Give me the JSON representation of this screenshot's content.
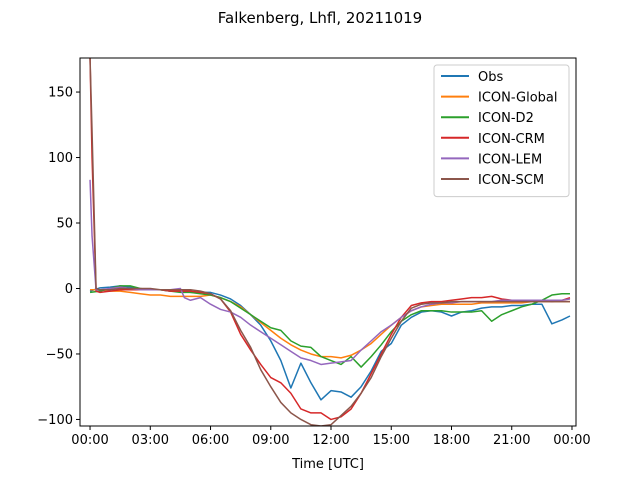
{
  "chart_data": {
    "type": "line",
    "title": "Falkenberg, Lhfl, 20211019",
    "xlabel": "Time [UTC]",
    "ylabel": "",
    "xlim": [
      -0.5,
      24.2
    ],
    "ylim": [
      -105,
      176
    ],
    "xticks": [
      0,
      3,
      6,
      9,
      12,
      15,
      18,
      21,
      24
    ],
    "xtick_labels": [
      "00:00",
      "03:00",
      "06:00",
      "09:00",
      "12:00",
      "15:00",
      "18:00",
      "21:00",
      "00:00"
    ],
    "yticks": [
      -100,
      -50,
      0,
      50,
      100,
      150
    ],
    "ytick_labels": [
      "−100",
      "−50",
      "0",
      "50",
      "100",
      "150"
    ],
    "legend_position": "top-right",
    "grid": false,
    "series": [
      {
        "name": "Obs",
        "color": "#1f77b4",
        "x": [
          0,
          0.5,
          1,
          1.5,
          2,
          2.5,
          3,
          3.5,
          4,
          4.5,
          5,
          5.5,
          6,
          6.5,
          7,
          7.5,
          8,
          8.5,
          9,
          9.5,
          10,
          10.5,
          11,
          11.5,
          12,
          12.5,
          13,
          13.5,
          14,
          14.5,
          15,
          15.5,
          16,
          16.5,
          17,
          17.5,
          18,
          18.5,
          19,
          19.5,
          20,
          20.5,
          21,
          21.5,
          22,
          22.5,
          23,
          23.5,
          23.9
        ],
        "y": [
          -2,
          0.5,
          1,
          2,
          1,
          -1,
          -1,
          -1,
          -2,
          -2,
          -3,
          -3,
          -3,
          -5,
          -8,
          -13,
          -20,
          -28,
          -40,
          -55,
          -76,
          -57,
          -72,
          -85,
          -78,
          -79,
          -83,
          -75,
          -63,
          -48,
          -42,
          -28,
          -22,
          -18,
          -17,
          -18,
          -21,
          -18,
          -17,
          -15,
          -14,
          -14,
          -13,
          -13,
          -12,
          -12,
          -27,
          -24,
          -21
        ]
      },
      {
        "name": "ICON-Global",
        "color": "#ff7f0e",
        "x": [
          0,
          0.5,
          1,
          1.5,
          2,
          2.5,
          3,
          3.5,
          4,
          4.5,
          5,
          5.5,
          6,
          6.5,
          7,
          7.5,
          8,
          8.5,
          9,
          9.5,
          10,
          10.5,
          11,
          11.5,
          12,
          12.5,
          13,
          13.5,
          14,
          14.5,
          15,
          15.5,
          16,
          16.5,
          17,
          17.5,
          18,
          18.5,
          19,
          19.5,
          20,
          20.5,
          21,
          21.5,
          22,
          22.5,
          23,
          23.5,
          23.9
        ],
        "y": [
          -1,
          -1,
          -2,
          -2,
          -3,
          -4,
          -5,
          -5,
          -6,
          -6,
          -6,
          -6,
          -5,
          -7,
          -10,
          -14,
          -20,
          -26,
          -32,
          -38,
          -43,
          -47,
          -50,
          -52,
          -52,
          -53,
          -51,
          -47,
          -42,
          -35,
          -28,
          -22,
          -17,
          -14,
          -13,
          -12,
          -12,
          -12,
          -12,
          -11,
          -11,
          -11,
          -11,
          -11,
          -10,
          -10,
          -10,
          -10,
          -10
        ]
      },
      {
        "name": "ICON-D2",
        "color": "#2ca02c",
        "x": [
          0,
          0.5,
          1,
          1.5,
          2,
          2.5,
          3,
          3.5,
          4,
          4.5,
          5,
          5.5,
          6,
          6.5,
          7,
          7.5,
          8,
          8.5,
          9,
          9.5,
          10,
          10.5,
          11,
          11.5,
          12,
          12.5,
          13,
          13.5,
          14,
          14.5,
          15,
          15.5,
          16,
          16.5,
          17,
          17.5,
          18,
          18.5,
          19,
          19.5,
          20,
          20.5,
          21,
          21.5,
          22,
          22.5,
          23,
          23.5,
          23.9
        ],
        "y": [
          -3,
          -2,
          0,
          2,
          2,
          0,
          -1,
          -1,
          -2,
          -3,
          -3,
          -4,
          -5,
          -7,
          -10,
          -15,
          -20,
          -25,
          -30,
          -32,
          -40,
          -44,
          -45,
          -52,
          -55,
          -58,
          -52,
          -60,
          -52,
          -43,
          -33,
          -25,
          -20,
          -17,
          -17,
          -17,
          -18,
          -18,
          -18,
          -17,
          -25,
          -20,
          -17,
          -14,
          -12,
          -9,
          -5,
          -4,
          -4
        ]
      },
      {
        "name": "ICON-CRM",
        "color": "#d62728",
        "x": [
          0,
          0.1,
          0.3,
          0.5,
          1,
          1.5,
          2,
          2.5,
          3,
          3.5,
          4,
          4.5,
          5,
          5.5,
          6,
          6.5,
          7,
          7.5,
          8,
          8.5,
          9,
          9.5,
          10,
          10.5,
          11,
          11.5,
          12,
          12.5,
          13,
          13.5,
          14,
          14.5,
          15,
          15.5,
          16,
          16.5,
          17,
          17.5,
          18,
          18.5,
          19,
          19.5,
          20,
          20.5,
          21,
          21.5,
          22,
          22.5,
          23,
          23.5,
          23.9
        ],
        "y": [
          176,
          100,
          -2,
          -3,
          -2,
          -1,
          -1,
          -1,
          -1,
          -1,
          -2,
          -2,
          -2,
          -3,
          -4,
          -8,
          -18,
          -35,
          -47,
          -58,
          -68,
          -72,
          -80,
          -92,
          -95,
          -95,
          -100,
          -98,
          -92,
          -80,
          -65,
          -50,
          -35,
          -22,
          -13,
          -11,
          -10,
          -10,
          -9,
          -8,
          -7,
          -7,
          -6,
          -8,
          -9,
          -9,
          -9,
          -9,
          -10,
          -9,
          -7
        ]
      },
      {
        "name": "ICON-LEM",
        "color": "#9467bd",
        "x": [
          0,
          0.1,
          0.3,
          0.5,
          1,
          1.5,
          2,
          2.5,
          3,
          3.5,
          4,
          4.5,
          4.7,
          5,
          5.5,
          6,
          6.5,
          7,
          7.5,
          8,
          8.5,
          9,
          9.5,
          10,
          10.5,
          11,
          11.5,
          12,
          12.5,
          13,
          13.5,
          14,
          14.5,
          15,
          15.5,
          16,
          16.5,
          17,
          17.5,
          18,
          18.5,
          19,
          19.5,
          20,
          20.5,
          21,
          21.5,
          22,
          22.5,
          23,
          23.5,
          23.9
        ],
        "y": [
          83,
          40,
          -1,
          -1,
          0,
          1,
          0,
          -1,
          -1,
          -1,
          -1,
          0,
          -7,
          -9,
          -7,
          -12,
          -16,
          -18,
          -22,
          -28,
          -33,
          -38,
          -43,
          -48,
          -53,
          -55,
          -58,
          -57,
          -56,
          -55,
          -47,
          -40,
          -33,
          -28,
          -22,
          -17,
          -14,
          -12,
          -11,
          -11,
          -10,
          -10,
          -10,
          -10,
          -9,
          -9,
          -9,
          -9,
          -9,
          -9,
          -9,
          -8
        ]
      },
      {
        "name": "ICON-SCM",
        "color": "#8c564b",
        "x": [
          0,
          0.1,
          0.3,
          0.5,
          1,
          1.5,
          2,
          2.5,
          3,
          3.5,
          4,
          4.5,
          5,
          5.5,
          6,
          6.5,
          7,
          7.5,
          8,
          8.5,
          9,
          9.5,
          10,
          10.5,
          11,
          11.5,
          12,
          12.5,
          13,
          13.5,
          14,
          14.5,
          15,
          15.5,
          16,
          16.5,
          17,
          17.5,
          18,
          18.5,
          19,
          19.5,
          20,
          20.5,
          21,
          21.5,
          22,
          22.5,
          23,
          23.5,
          23.9
        ],
        "y": [
          176,
          120,
          0,
          -1,
          -1,
          0,
          0,
          0,
          0,
          -1,
          -1,
          -1,
          -1,
          -2,
          -4,
          -8,
          -17,
          -32,
          -45,
          -62,
          -75,
          -87,
          -95,
          -100,
          -104,
          -105,
          -104,
          -97,
          -90,
          -80,
          -68,
          -52,
          -38,
          -25,
          -15,
          -12,
          -11,
          -11,
          -10,
          -10,
          -10,
          -10,
          -10,
          -10,
          -10,
          -10,
          -10,
          -10,
          -10,
          -10,
          -10
        ]
      }
    ]
  }
}
